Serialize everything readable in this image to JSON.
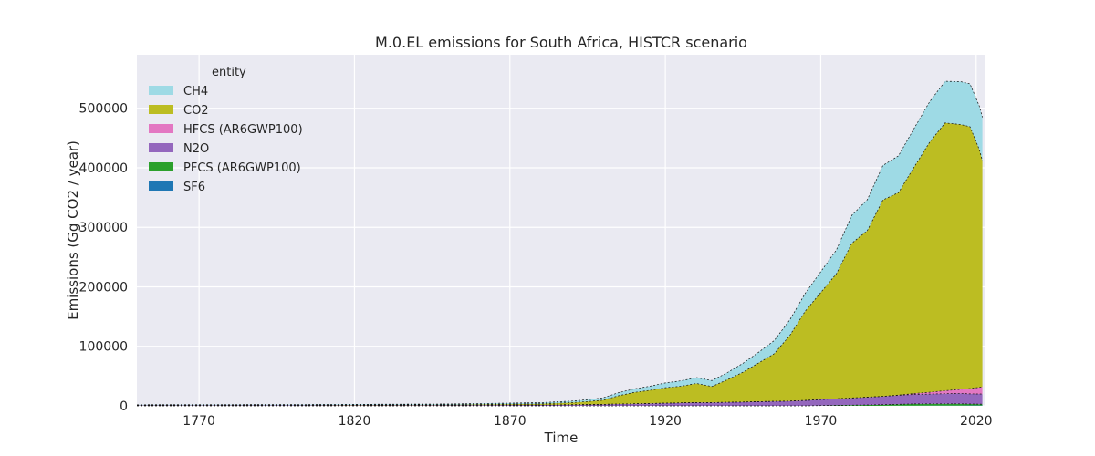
{
  "chart_data": {
    "type": "area",
    "title": "M.0.EL emissions for South Africa, HISTCR scenario",
    "xlabel": "Time",
    "ylabel": "Emissions (Gg CO2 / year)",
    "xlim": [
      1750,
      2023
    ],
    "ylim": [
      0,
      590000
    ],
    "xticks": [
      1770,
      1820,
      1870,
      1920,
      1970,
      2020
    ],
    "yticks": [
      0,
      100000,
      200000,
      300000,
      400000,
      500000
    ],
    "grid": true,
    "legend": {
      "title": "entity",
      "placement": "top-left",
      "entries": [
        "CH4",
        "CO2",
        "HFCS (AR6GWP100)",
        "N2O",
        "PFCS (AR6GWP100)",
        "SF6"
      ]
    },
    "stack_order_bottom_to_top": [
      "SF6",
      "PFCS (AR6GWP100)",
      "N2O",
      "HFCS (AR6GWP100)",
      "CO2",
      "CH4"
    ],
    "x": [
      1750,
      1800,
      1850,
      1880,
      1890,
      1895,
      1900,
      1905,
      1910,
      1915,
      1920,
      1925,
      1930,
      1935,
      1940,
      1945,
      1950,
      1955,
      1960,
      1965,
      1970,
      1975,
      1980,
      1985,
      1990,
      1995,
      2000,
      2005,
      2010,
      2015,
      2018,
      2021,
      2022
    ],
    "series": [
      {
        "name": "SF6",
        "color": "#1f77b4",
        "values": [
          0,
          0,
          0,
          0,
          0,
          0,
          0,
          0,
          0,
          0,
          0,
          0,
          0,
          0,
          0,
          0,
          0,
          0,
          0,
          0,
          0,
          0,
          0,
          0,
          0,
          100,
          200,
          300,
          400,
          500,
          600,
          600,
          600
        ]
      },
      {
        "name": "PFCS (AR6GWP100)",
        "color": "#2ca02c",
        "values": [
          0,
          0,
          0,
          0,
          0,
          0,
          0,
          0,
          0,
          0,
          0,
          0,
          0,
          0,
          0,
          0,
          0,
          0,
          0,
          0,
          500,
          800,
          1200,
          1500,
          2000,
          2500,
          3000,
          3000,
          3000,
          2800,
          2500,
          2300,
          2200
        ]
      },
      {
        "name": "N2O",
        "color": "#9467bd",
        "values": [
          800,
          900,
          1000,
          1500,
          2000,
          2200,
          2500,
          3000,
          3500,
          4000,
          4500,
          5000,
          5500,
          5500,
          6000,
          6500,
          7000,
          7500,
          8000,
          9000,
          10000,
          11000,
          12000,
          13000,
          14000,
          15000,
          16000,
          16500,
          17000,
          17500,
          17000,
          17000,
          17000
        ]
      },
      {
        "name": "HFCS (AR6GWP100)",
        "color": "#e377c2",
        "values": [
          0,
          0,
          0,
          0,
          0,
          0,
          0,
          0,
          0,
          0,
          0,
          0,
          0,
          0,
          0,
          0,
          0,
          0,
          0,
          0,
          0,
          0,
          0,
          0,
          0,
          500,
          1500,
          3000,
          5000,
          7000,
          9000,
          11000,
          12000
        ]
      },
      {
        "name": "CO2",
        "color": "#bcbd22",
        "values": [
          200,
          300,
          800,
          2000,
          3500,
          5000,
          7000,
          14000,
          19000,
          22000,
          26000,
          28000,
          32000,
          27000,
          38000,
          50000,
          65000,
          80000,
          110000,
          150000,
          180000,
          210000,
          260000,
          280000,
          330000,
          340000,
          380000,
          420000,
          450000,
          445000,
          440000,
          400000,
          380000
        ]
      },
      {
        "name": "CH4",
        "color": "#9edae5",
        "values": [
          900,
          1000,
          1200,
          1800,
          2500,
          3000,
          4000,
          5000,
          6000,
          7000,
          8000,
          9000,
          10000,
          10000,
          12000,
          15000,
          18000,
          22000,
          26000,
          30000,
          35000,
          40000,
          47000,
          52000,
          58000,
          62000,
          65000,
          68000,
          70000,
          72000,
          72000,
          73000,
          73000
        ]
      }
    ]
  }
}
